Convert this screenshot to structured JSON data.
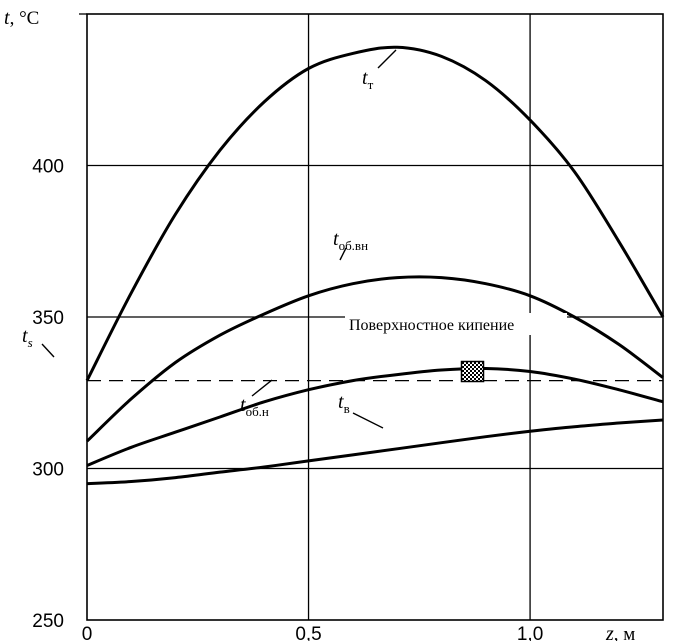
{
  "chart_data": {
    "type": "line",
    "xlim": [
      0,
      1.3
    ],
    "ylim": [
      250,
      450
    ],
    "grid": true,
    "x_ticks": [
      {
        "value": 0,
        "label": "0"
      },
      {
        "value": 0.5,
        "label": "0,5"
      },
      {
        "value": 1.0,
        "label": "1,0"
      }
    ],
    "y_ticks": [
      {
        "value": 250,
        "label": "250"
      },
      {
        "value": 300,
        "label": "300"
      },
      {
        "value": 350,
        "label": "350"
      },
      {
        "value": 400,
        "label": "400"
      }
    ],
    "xlabel": {
      "symbol": "z",
      "unit": ", м"
    },
    "ylabel": {
      "symbol": "t",
      "unit": ", °C"
    },
    "series": [
      {
        "name": "t_т",
        "label_main": "t",
        "label_sub": "т",
        "x": [
          0,
          0.1,
          0.2,
          0.3,
          0.4,
          0.5,
          0.6,
          0.7,
          0.8,
          0.9,
          1.0,
          1.1,
          1.2,
          1.3
        ],
        "y": [
          329,
          358,
          384,
          405,
          421,
          432,
          437,
          439,
          436,
          428,
          415,
          398,
          375,
          350
        ]
      },
      {
        "name": "t_об.вн",
        "label_main": "t",
        "label_sub": "об.вн",
        "x": [
          0,
          0.1,
          0.2,
          0.3,
          0.4,
          0.5,
          0.6,
          0.7,
          0.8,
          0.9,
          1.0,
          1.1,
          1.2,
          1.3
        ],
        "y": [
          309,
          323,
          335,
          344,
          351,
          357,
          361,
          363,
          363,
          361,
          357,
          350,
          341,
          330
        ]
      },
      {
        "name": "t_об.н",
        "label_main": "t",
        "label_sub": "об.н",
        "x": [
          0,
          0.1,
          0.2,
          0.3,
          0.4,
          0.5,
          0.6,
          0.7,
          0.8,
          0.9,
          1.0,
          1.1,
          1.2,
          1.3
        ],
        "y": [
          301,
          307,
          312,
          317,
          322,
          326,
          329,
          331,
          332.5,
          333,
          332,
          329.5,
          326,
          322
        ]
      },
      {
        "name": "t_в",
        "label_main": "t",
        "label_sub": "в",
        "x": [
          0,
          0.1,
          0.2,
          0.3,
          0.4,
          0.5,
          0.6,
          0.7,
          0.8,
          0.9,
          1.0,
          1.1,
          1.2,
          1.3
        ],
        "y": [
          295,
          295.7,
          297,
          298.8,
          300.5,
          302.5,
          304.5,
          306.5,
          308.5,
          310.5,
          312.3,
          313.8,
          315,
          316
        ]
      }
    ],
    "reference_line": {
      "name": "t_s",
      "label_main": "t",
      "label_sub": "s",
      "y": 329,
      "style": "dashed"
    },
    "annotation": {
      "text": "Поверхностное кипение",
      "marker_x": 0.87,
      "marker_y": 332
    }
  }
}
